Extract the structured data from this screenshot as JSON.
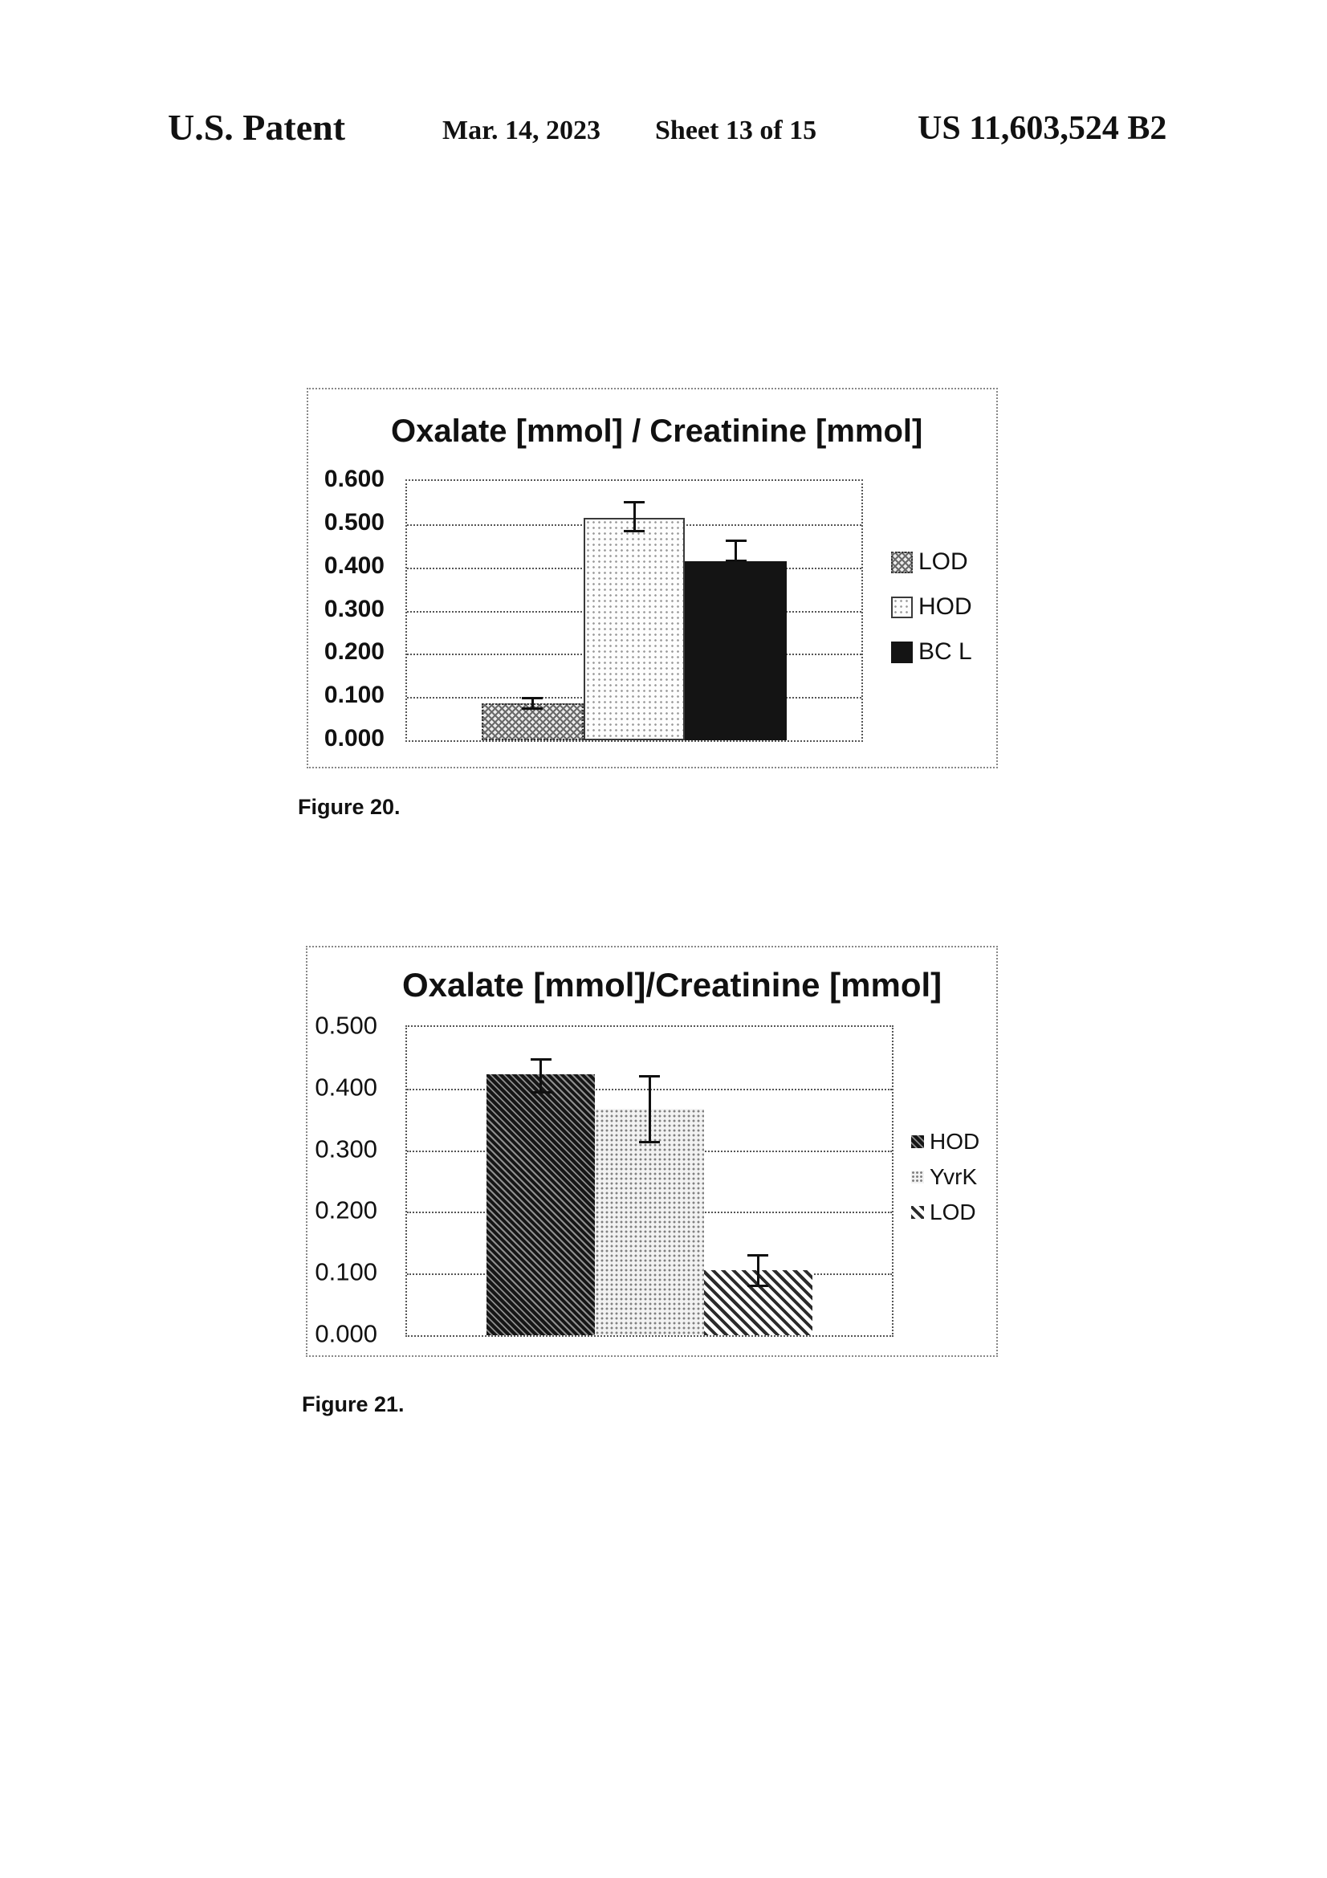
{
  "header": {
    "title": "U.S. Patent",
    "date": "Mar. 14, 2023",
    "sheet": "Sheet 13 of 15",
    "patent_number": "US 11,603,524 B2"
  },
  "figures": [
    {
      "label": "Figure 20."
    },
    {
      "label": "Figure 21."
    }
  ],
  "colors": {
    "ink": "#111111",
    "box_border": "#888888",
    "grid_line": "#555555",
    "solid_bar": "#141414"
  },
  "chart_data": [
    {
      "type": "bar",
      "title": "Oxalate [mmol] / Creatinine [mmol]",
      "categories": [
        "LOD",
        "HOD",
        "BC L"
      ],
      "values": [
        0.085,
        0.515,
        0.415
      ],
      "error_low": [
        0.073,
        0.483,
        0.415
      ],
      "error_high": [
        0.098,
        0.552,
        0.462
      ],
      "yticks": [
        "0.600",
        "0.500",
        "0.400",
        "0.300",
        "0.200",
        "0.100",
        "0.000"
      ],
      "ylim": [
        0,
        0.6
      ],
      "xlabel": "",
      "ylabel": "",
      "grid": "horizontal-dotted",
      "legend_position": "right",
      "legend": [
        {
          "label": "LOD",
          "pattern": "crosshatch"
        },
        {
          "label": "HOD",
          "pattern": "light-dots"
        },
        {
          "label": "BC L",
          "pattern": "solid-black"
        }
      ],
      "bar_patterns": [
        "crosshatch",
        "light-dots",
        "solid-black"
      ]
    },
    {
      "type": "bar",
      "title": "Oxalate [mmol]/Creatinine [mmol]",
      "categories": [
        "HOD",
        "YvrK",
        "LOD"
      ],
      "values": [
        0.423,
        0.367,
        0.105
      ],
      "error_low": [
        0.393,
        0.312,
        0.08
      ],
      "error_high": [
        0.448,
        0.42,
        0.13
      ],
      "yticks": [
        "0.500",
        "0.400",
        "0.300",
        "0.200",
        "0.100",
        "0.000"
      ],
      "ylim": [
        0,
        0.5
      ],
      "xlabel": "",
      "ylabel": "",
      "grid": "horizontal-dotted",
      "legend_position": "right",
      "legend": [
        {
          "label": "HOD",
          "pattern": "dark-diagonal"
        },
        {
          "label": "YvrK",
          "pattern": "fine-dots"
        },
        {
          "label": "LOD",
          "pattern": "medium-diagonal"
        }
      ],
      "bar_patterns": [
        "dark-diagonal",
        "fine-dots",
        "medium-diagonal"
      ]
    }
  ]
}
